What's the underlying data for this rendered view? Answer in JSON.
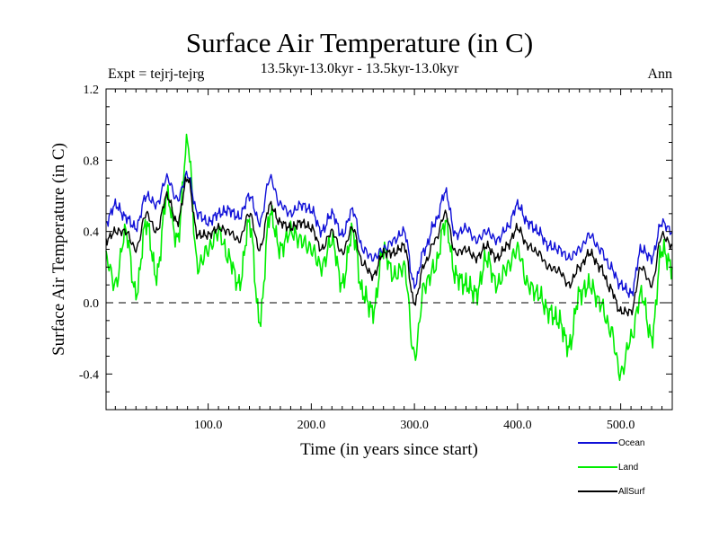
{
  "colors": {
    "ocean": "#1010d8",
    "land": "#00ee00",
    "allsurf": "#000000"
  },
  "chart_data": {
    "type": "line",
    "title": "Surface Air Temperature (in C)",
    "subtitle": "13.5kyr-13.0kyr - 13.5kyr-13.0kyr",
    "expt": "Expt = tejrj-tejrg",
    "period": "Ann",
    "xlabel": "Time (in years since start)",
    "ylabel": "Surface Air Temperature (in C)",
    "xlim": [
      1,
      550
    ],
    "ylim": [
      -0.6,
      1.2
    ],
    "xticks": [
      {
        "v": 100,
        "label": "100.0"
      },
      {
        "v": 200,
        "label": "200.0"
      },
      {
        "v": 300,
        "label": "300.0"
      },
      {
        "v": 400,
        "label": "400.0"
      },
      {
        "v": 500,
        "label": "500.0"
      }
    ],
    "yticks": [
      {
        "v": 1.2,
        "label": "1.2"
      },
      {
        "v": 0.8,
        "label": "0.8"
      },
      {
        "v": 0.4,
        "label": "0.4"
      },
      {
        "v": 0.0,
        "label": "0.0"
      },
      {
        "v": -0.4,
        "label": "-0.4"
      }
    ],
    "zero_line": true,
    "series": [
      {
        "name": "Ocean",
        "key": "ocean",
        "x": [
          1,
          10,
          20,
          30,
          40,
          50,
          60,
          70,
          80,
          90,
          100,
          110,
          120,
          130,
          140,
          150,
          160,
          170,
          180,
          190,
          200,
          210,
          220,
          230,
          240,
          250,
          260,
          270,
          280,
          290,
          300,
          310,
          320,
          330,
          340,
          350,
          360,
          370,
          380,
          390,
          400,
          410,
          420,
          430,
          440,
          450,
          460,
          470,
          480,
          490,
          500,
          510,
          520,
          530,
          540,
          550
        ],
        "y": [
          0.45,
          0.55,
          0.48,
          0.42,
          0.6,
          0.55,
          0.7,
          0.58,
          0.72,
          0.5,
          0.45,
          0.5,
          0.52,
          0.48,
          0.6,
          0.45,
          0.7,
          0.55,
          0.5,
          0.55,
          0.52,
          0.4,
          0.5,
          0.38,
          0.52,
          0.3,
          0.25,
          0.3,
          0.35,
          0.4,
          0.1,
          0.3,
          0.45,
          0.62,
          0.38,
          0.42,
          0.35,
          0.4,
          0.35,
          0.42,
          0.55,
          0.45,
          0.4,
          0.32,
          0.3,
          0.25,
          0.3,
          0.38,
          0.3,
          0.2,
          0.1,
          0.05,
          0.3,
          0.25,
          0.45,
          0.4
        ]
      },
      {
        "name": "Land",
        "key": "land",
        "x": [
          1,
          10,
          20,
          30,
          40,
          50,
          60,
          70,
          80,
          90,
          100,
          110,
          120,
          130,
          140,
          150,
          160,
          170,
          180,
          190,
          200,
          210,
          220,
          230,
          240,
          250,
          260,
          270,
          280,
          290,
          300,
          310,
          320,
          330,
          340,
          350,
          360,
          370,
          380,
          390,
          400,
          410,
          420,
          430,
          440,
          450,
          460,
          470,
          480,
          490,
          500,
          510,
          520,
          530,
          540,
          550
        ],
        "y": [
          0.25,
          0.1,
          0.4,
          0.05,
          0.45,
          0.15,
          0.6,
          0.35,
          0.9,
          0.2,
          0.3,
          0.4,
          0.25,
          0.1,
          0.45,
          -0.1,
          0.5,
          0.3,
          0.4,
          0.35,
          0.3,
          0.2,
          0.35,
          0.1,
          0.4,
          0.05,
          -0.05,
          0.3,
          0.15,
          0.2,
          -0.3,
          0.1,
          0.2,
          0.45,
          0.15,
          0.1,
          0.05,
          0.25,
          0.1,
          0.2,
          0.3,
          0.1,
          0.05,
          -0.05,
          -0.1,
          -0.25,
          0.05,
          0.1,
          0.0,
          -0.15,
          -0.4,
          -0.2,
          0.05,
          -0.2,
          0.3,
          0.2
        ]
      },
      {
        "name": "AllSurf",
        "key": "allsurf",
        "x": [
          1,
          10,
          20,
          30,
          40,
          50,
          60,
          70,
          80,
          90,
          100,
          110,
          120,
          130,
          140,
          150,
          160,
          170,
          180,
          190,
          200,
          210,
          220,
          230,
          240,
          250,
          260,
          270,
          280,
          290,
          300,
          310,
          320,
          330,
          340,
          350,
          360,
          370,
          380,
          390,
          400,
          410,
          420,
          430,
          440,
          450,
          460,
          470,
          480,
          490,
          500,
          510,
          520,
          530,
          540,
          550
        ],
        "y": [
          0.35,
          0.4,
          0.4,
          0.3,
          0.5,
          0.4,
          0.6,
          0.45,
          0.7,
          0.38,
          0.38,
          0.42,
          0.4,
          0.35,
          0.5,
          0.3,
          0.55,
          0.45,
          0.42,
          0.45,
          0.42,
          0.3,
          0.4,
          0.28,
          0.42,
          0.22,
          0.15,
          0.28,
          0.28,
          0.32,
          0.0,
          0.22,
          0.35,
          0.5,
          0.28,
          0.3,
          0.25,
          0.32,
          0.25,
          0.32,
          0.42,
          0.32,
          0.28,
          0.2,
          0.18,
          0.1,
          0.2,
          0.28,
          0.2,
          0.08,
          -0.05,
          -0.05,
          0.2,
          0.1,
          0.38,
          0.32
        ]
      }
    ],
    "legend": [
      {
        "label": "Ocean",
        "key": "ocean"
      },
      {
        "label": "Land",
        "key": "land"
      },
      {
        "label": "AllSurf",
        "key": "allsurf"
      }
    ]
  }
}
